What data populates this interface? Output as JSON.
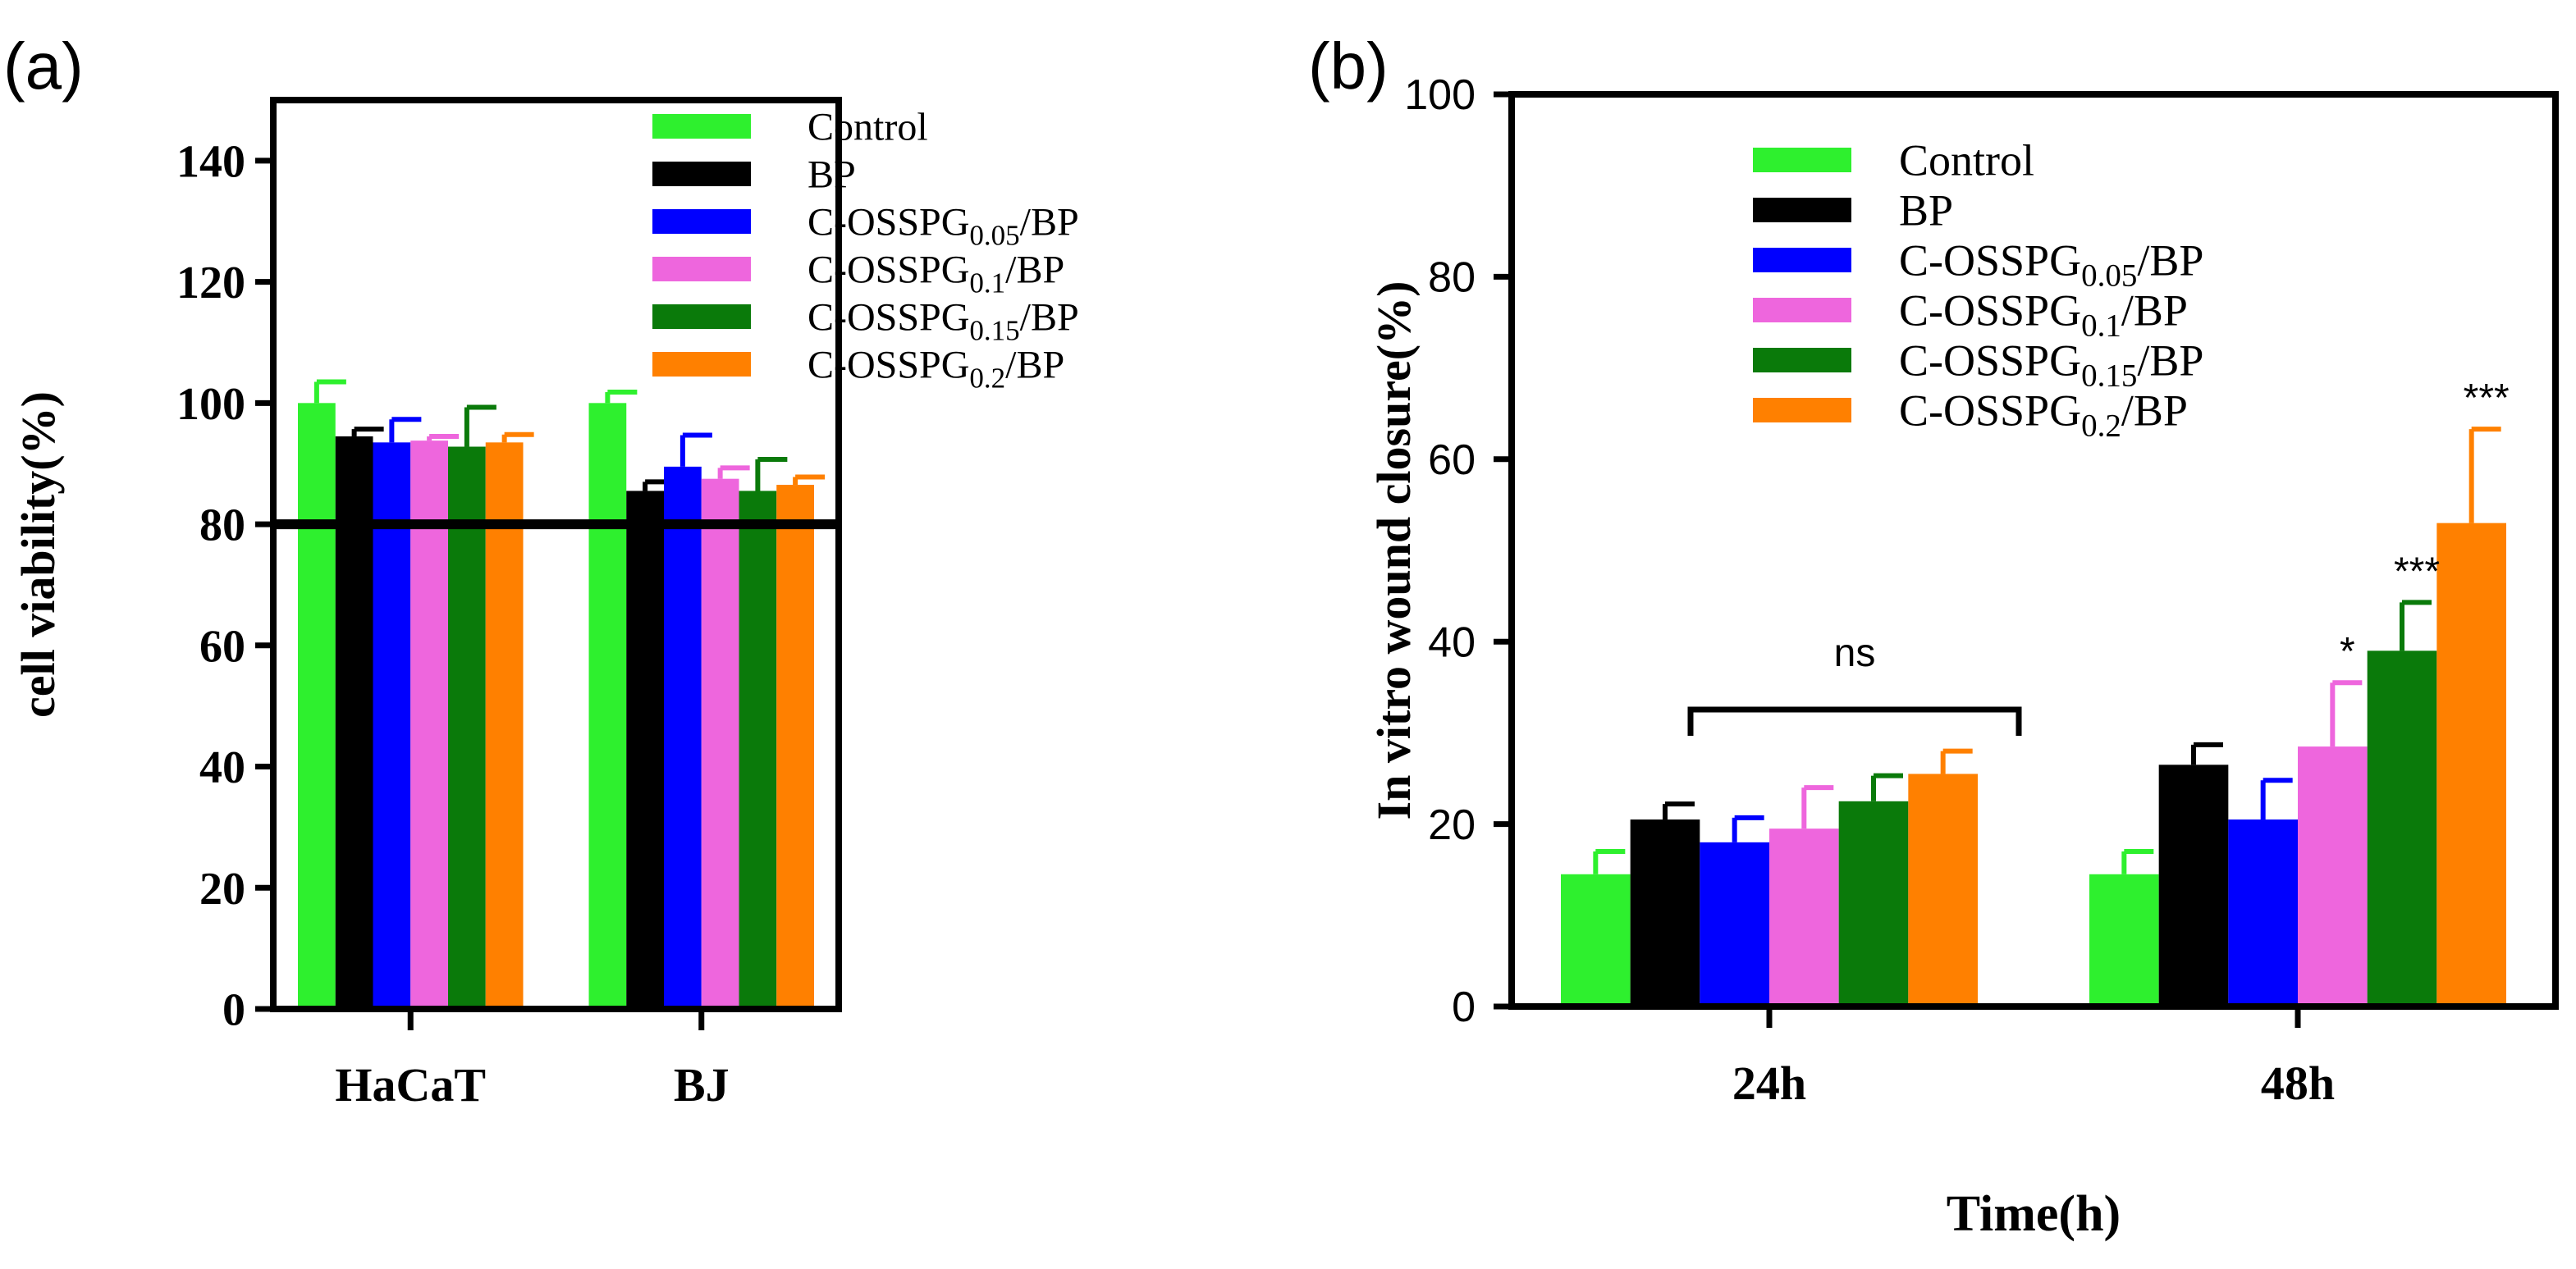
{
  "panels": [
    {
      "panel_label": "(a)",
      "chart_data": {
        "type": "bar",
        "title": "",
        "xlabel": "",
        "ylabel": "cell viability(%)",
        "categories": [
          "HaCaT",
          "BJ"
        ],
        "ylim": [
          0,
          150
        ],
        "yticks": [
          0,
          20,
          40,
          60,
          80,
          100,
          120,
          140
        ],
        "reference_line": 80,
        "legend_position": "top-right",
        "series": [
          {
            "name": "Control",
            "name_parts": [
              [
                "Control",
                ""
              ]
            ],
            "color": "#2ef02e",
            "values": [
              100,
              100
            ],
            "errors": [
              3.5,
              1.8
            ]
          },
          {
            "name": "BP",
            "name_parts": [
              [
                "BP",
                ""
              ]
            ],
            "color": "#000000",
            "values": [
              94.5,
              85.5
            ],
            "errors": [
              1.2,
              1.5
            ]
          },
          {
            "name": "C-OSSPG0.05/BP",
            "name_parts": [
              [
                "C-OSSPG",
                ""
              ],
              [
                "0.05",
                "sub"
              ],
              [
                "/BP",
                ""
              ]
            ],
            "color": "#0000ff",
            "values": [
              93.5,
              89.5
            ],
            "errors": [
              3.8,
              5.2
            ]
          },
          {
            "name": "C-OSSPG0.1/BP",
            "name_parts": [
              [
                "C-OSSPG",
                ""
              ],
              [
                "0.1",
                "sub"
              ],
              [
                "/BP",
                ""
              ]
            ],
            "color": "#ee66dd",
            "values": [
              93.8,
              87.5
            ],
            "errors": [
              0.7,
              1.8
            ]
          },
          {
            "name": "C-OSSPG0.15/BP",
            "name_parts": [
              [
                "C-OSSPG",
                ""
              ],
              [
                "0.15",
                "sub"
              ],
              [
                "/BP",
                ""
              ]
            ],
            "color": "#0a7a0a",
            "values": [
              92.8,
              85.5
            ],
            "errors": [
              6.5,
              5.2
            ]
          },
          {
            "name": "C-OSSPG0.2/BP",
            "name_parts": [
              [
                "C-OSSPG",
                ""
              ],
              [
                "0.2",
                "sub"
              ],
              [
                "/BP",
                ""
              ]
            ],
            "color": "#ff8000",
            "values": [
              93.5,
              86.5
            ],
            "errors": [
              1.3,
              1.3
            ]
          }
        ],
        "annotations": []
      }
    },
    {
      "panel_label": "(b)",
      "chart_data": {
        "type": "bar",
        "title": "",
        "xlabel": "Time(h)",
        "ylabel": "In vitro wound closure(%)",
        "categories": [
          "24h",
          "48h"
        ],
        "ylim": [
          0,
          100
        ],
        "yticks": [
          0,
          20,
          40,
          60,
          80,
          100
        ],
        "legend_position": "top-left",
        "series": [
          {
            "name": "Control",
            "name_parts": [
              [
                "Control",
                ""
              ]
            ],
            "color": "#2ef02e",
            "values": [
              14.5,
              14.5
            ],
            "errors": [
              2.5,
              2.5
            ]
          },
          {
            "name": "BP",
            "name_parts": [
              [
                "BP",
                ""
              ]
            ],
            "color": "#000000",
            "values": [
              20.5,
              26.5
            ],
            "errors": [
              1.7,
              2.2
            ]
          },
          {
            "name": "C-OSSPG0.05/BP",
            "name_parts": [
              [
                "C-OSSPG",
                ""
              ],
              [
                "0.05",
                "sub"
              ],
              [
                "/BP",
                ""
              ]
            ],
            "color": "#0000ff",
            "values": [
              18,
              20.5
            ],
            "errors": [
              2.7,
              4.3
            ]
          },
          {
            "name": "C-OSSPG0.1/BP",
            "name_parts": [
              [
                "C-OSSPG",
                ""
              ],
              [
                "0.1",
                "sub"
              ],
              [
                "/BP",
                ""
              ]
            ],
            "color": "#ee66dd",
            "values": [
              19.5,
              28.5
            ],
            "errors": [
              4.5,
              7
            ]
          },
          {
            "name": "C-OSSPG0.15/BP",
            "name_parts": [
              [
                "C-OSSPG",
                ""
              ],
              [
                "0.15",
                "sub"
              ],
              [
                "/BP",
                ""
              ]
            ],
            "color": "#0a7a0a",
            "values": [
              22.5,
              39
            ],
            "errors": [
              2.8,
              5.3
            ]
          },
          {
            "name": "C-OSSPG0.2/BP",
            "name_parts": [
              [
                "C-OSSPG",
                ""
              ],
              [
                "0.2",
                "sub"
              ],
              [
                "/BP",
                ""
              ]
            ],
            "color": "#ff8000",
            "values": [
              25.5,
              53
            ],
            "errors": [
              2.5,
              10.3
            ]
          }
        ],
        "annotations": [
          {
            "text": "ns",
            "category_index": 0,
            "series_index": null
          },
          {
            "text": "*",
            "category_index": 1,
            "series_index": 3
          },
          {
            "text": "***",
            "category_index": 1,
            "series_index": 4
          },
          {
            "text": "***",
            "category_index": 1,
            "series_index": 5
          }
        ]
      }
    }
  ]
}
